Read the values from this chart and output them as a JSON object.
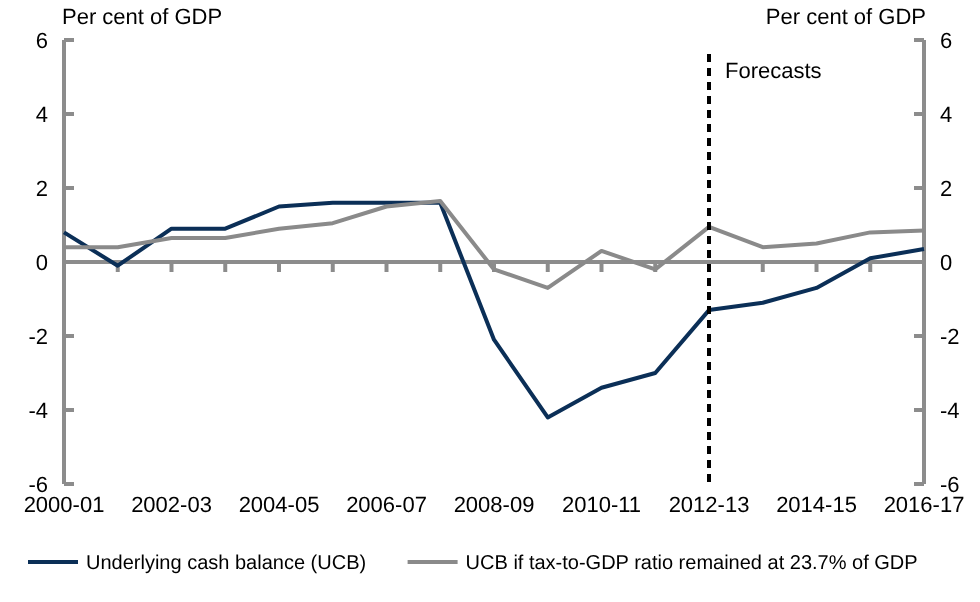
{
  "chart_data": {
    "type": "line",
    "ylabel": "Per cent of GDP",
    "y2label": "Per cent of GDP",
    "categories": [
      "2000-01",
      null,
      "2002-03",
      null,
      "2004-05",
      null,
      "2006-07",
      null,
      "2008-09",
      null,
      "2010-11",
      null,
      "2012-13",
      null,
      "2014-15",
      null,
      "2016-17"
    ],
    "series": [
      {
        "name": "Underlying cash balance (UCB)",
        "color": "#0b2f57",
        "values": [
          0.8,
          -0.1,
          0.9,
          0.9,
          1.5,
          1.6,
          1.6,
          1.6,
          -2.1,
          -4.2,
          -3.4,
          -3.0,
          -1.3,
          -1.1,
          -0.7,
          0.1,
          0.35
        ]
      },
      {
        "name": "UCB if tax-to-GDP ratio remained at 23.7% of GDP",
        "color": "#8a8a8a",
        "values": [
          0.4,
          0.4,
          0.65,
          0.65,
          0.9,
          1.05,
          1.5,
          1.65,
          -0.2,
          -0.7,
          0.3,
          -0.2,
          0.95,
          0.4,
          0.5,
          0.8,
          0.85
        ]
      }
    ],
    "ylim": [
      -6,
      6
    ],
    "yticks": [
      -6,
      -4,
      -2,
      0,
      2,
      4,
      6
    ],
    "y2lim": [
      -6,
      6
    ],
    "y2ticks": [
      -6,
      -4,
      -2,
      0,
      2,
      4,
      6
    ],
    "ref_lines": [
      {
        "axis": "x",
        "value": "2012-13",
        "label": "Forecasts",
        "color": "#000000",
        "line_style": "dashed"
      }
    ],
    "grid": false,
    "legend": "bottom",
    "marker": "none",
    "line_style": "solid"
  }
}
